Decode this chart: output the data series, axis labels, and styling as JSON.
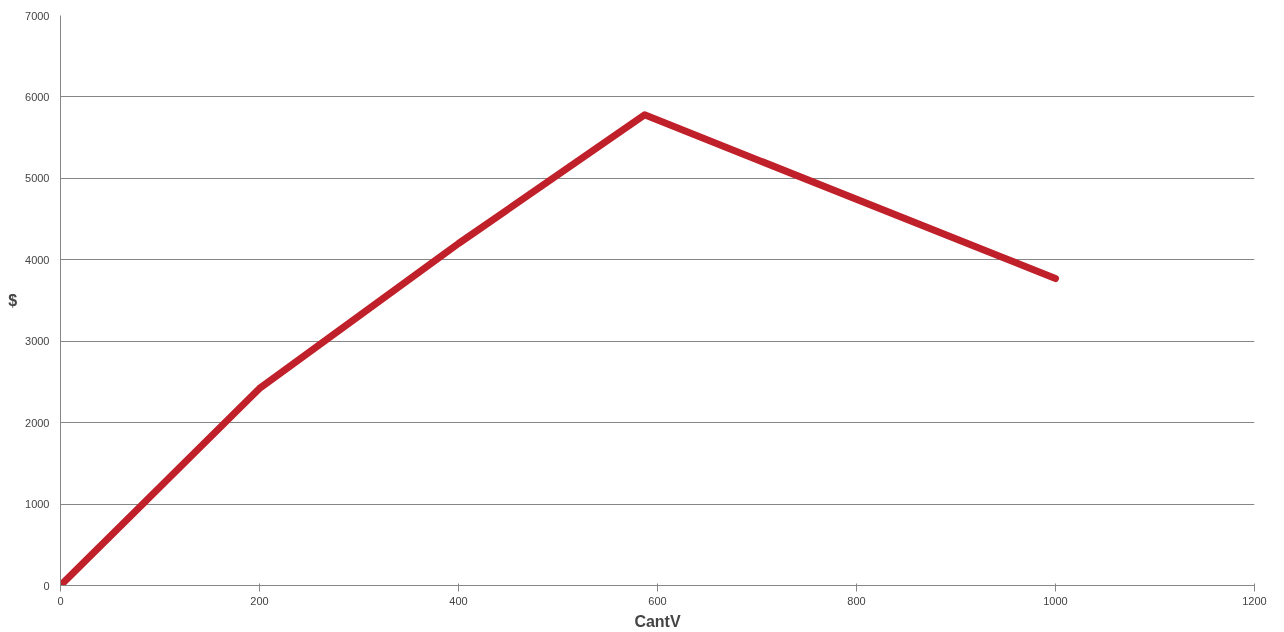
{
  "chart_data": {
    "type": "line",
    "xlabel": "CantV",
    "ylabel": "$",
    "x": [
      0,
      200,
      400,
      587,
      1000
    ],
    "series": [
      {
        "color": "#c0202a",
        "values": [
          0,
          2420,
          4200,
          5780,
          3770
        ]
      }
    ],
    "xlim": [
      0,
      1200
    ],
    "xticks": [
      0,
      200,
      400,
      600,
      800,
      1000,
      1200
    ],
    "ylim": [
      0,
      7000
    ],
    "yticks": [
      0,
      1000,
      2000,
      3000,
      4000,
      5000,
      6000,
      7000
    ],
    "grid": "y",
    "marker": "none",
    "line_style": "solid"
  }
}
